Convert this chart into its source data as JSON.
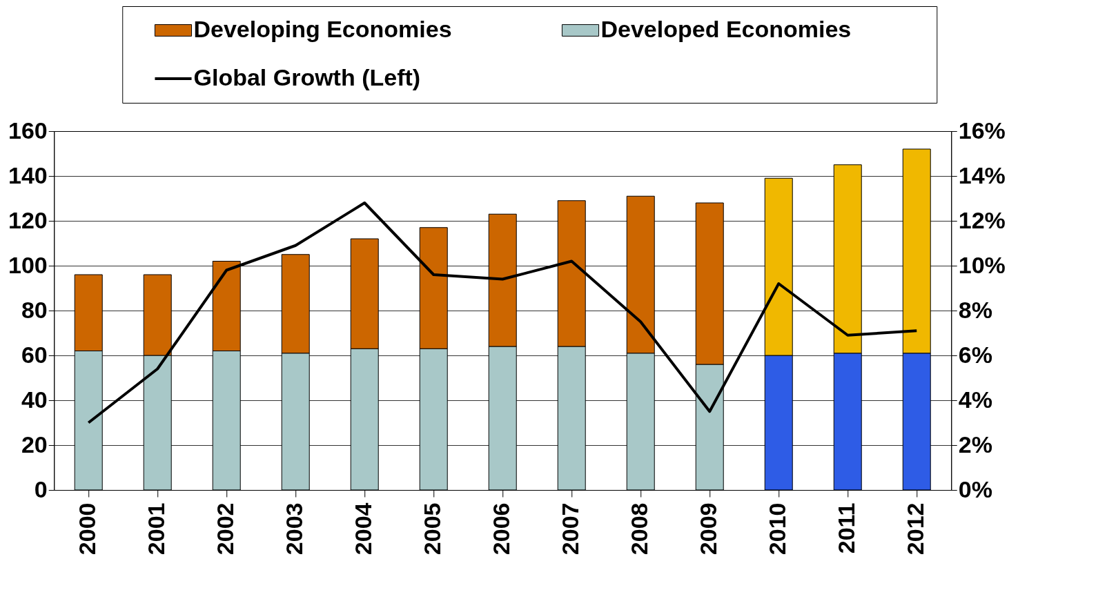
{
  "chart_data": {
    "type": "bar",
    "stacked": true,
    "categories": [
      "2000",
      "2001",
      "2002",
      "2003",
      "2004",
      "2005",
      "2006",
      "2007",
      "2008",
      "2009",
      "2010",
      "2011",
      "2012"
    ],
    "series": [
      {
        "name": "Developed Economies",
        "color": "#a8c8c8",
        "colors": [
          "#a8c8c8",
          "#a8c8c8",
          "#a8c8c8",
          "#a8c8c8",
          "#a8c8c8",
          "#a8c8c8",
          "#a8c8c8",
          "#a8c8c8",
          "#a8c8c8",
          "#a8c8c8",
          "#2e5ce6",
          "#2e5ce6",
          "#2e5ce6"
        ],
        "values": [
          62,
          60,
          62,
          61,
          63,
          63,
          64,
          64,
          61,
          56,
          60,
          61,
          61
        ]
      },
      {
        "name": "Developing Economies",
        "color": "#cc6600",
        "colors": [
          "#cc6600",
          "#cc6600",
          "#cc6600",
          "#cc6600",
          "#cc6600",
          "#cc6600",
          "#cc6600",
          "#cc6600",
          "#cc6600",
          "#cc6600",
          "#f0b800",
          "#f0b800",
          "#f0b800"
        ],
        "values": [
          34,
          36,
          40,
          44,
          49,
          54,
          59,
          65,
          70,
          72,
          79,
          84,
          91
        ]
      },
      {
        "name": "Global Growth (Left)",
        "type": "line",
        "color": "#000000",
        "values": [
          30,
          54,
          98,
          109,
          128,
          96,
          94,
          102,
          75,
          35,
          92,
          69,
          71
        ]
      }
    ],
    "ylim": [
      0,
      160
    ],
    "yticks": [
      0,
      20,
      40,
      60,
      80,
      100,
      120,
      140,
      160
    ],
    "y2lim": [
      0,
      16
    ],
    "y2ticks": [
      {
        "value": 0,
        "label": "0%"
      },
      {
        "value": 2,
        "label": "2%"
      },
      {
        "value": 4,
        "label": "4%"
      },
      {
        "value": 6,
        "label": "6%"
      },
      {
        "value": 8,
        "label": "8%"
      },
      {
        "value": 10,
        "label": "10%"
      },
      {
        "value": 12,
        "label": "12%"
      },
      {
        "value": 14,
        "label": "14%"
      },
      {
        "value": 16,
        "label": "16%"
      }
    ],
    "grid": "y",
    "legend": "top"
  }
}
